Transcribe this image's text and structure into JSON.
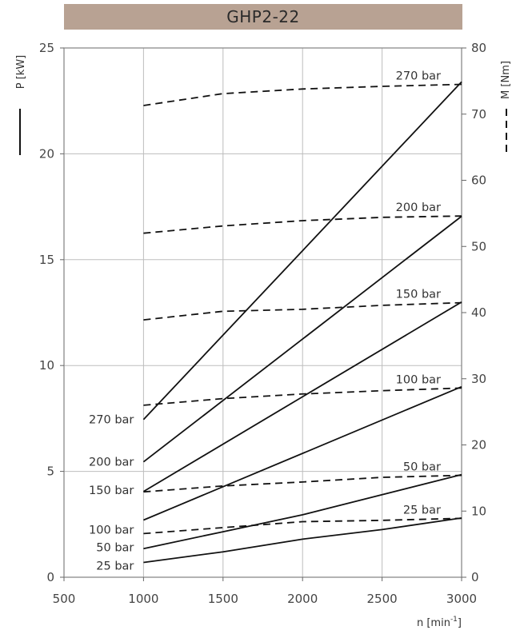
{
  "chart_data": {
    "type": "line",
    "title": "GHP2-22",
    "xlabel": "n [min-1]",
    "xlabel_parts": {
      "base": "n [min",
      "sup": "-1",
      "close": "]"
    },
    "ylabel_left": "P [kW]",
    "ylabel_right": "M [Nm]",
    "xlim": [
      500,
      3000
    ],
    "ylim_left": [
      0,
      25
    ],
    "ylim_right": [
      0,
      80
    ],
    "xticks": [
      500,
      1000,
      1500,
      2000,
      2500,
      3000
    ],
    "yticks_left": [
      0,
      5,
      10,
      15,
      20,
      25
    ],
    "yticks_right": [
      0,
      10,
      20,
      30,
      40,
      50,
      60,
      70,
      80
    ],
    "grid": true,
    "power_series": [
      {
        "name": "270 bar",
        "x": [
          1000,
          3000
        ],
        "y": [
          7.45,
          23.4
        ]
      },
      {
        "name": "200 bar",
        "x": [
          1000,
          3000
        ],
        "y": [
          5.45,
          17.05
        ]
      },
      {
        "name": "150 bar",
        "x": [
          1000,
          3000
        ],
        "y": [
          4.05,
          13.0
        ]
      },
      {
        "name": "100 bar",
        "x": [
          1000,
          3000
        ],
        "y": [
          2.7,
          9.0
        ]
      },
      {
        "name": "50 bar",
        "x": [
          1000,
          1500,
          2000,
          2500,
          3000
        ],
        "y": [
          1.35,
          2.15,
          2.95,
          3.9,
          4.85
        ]
      },
      {
        "name": "25 bar",
        "x": [
          1000,
          1500,
          2000,
          2500,
          3000
        ],
        "y": [
          0.7,
          1.2,
          1.8,
          2.25,
          2.8
        ]
      }
    ],
    "torque_series": [
      {
        "name": "270 bar",
        "x": [
          1000,
          1500,
          2000,
          2500,
          3000
        ],
        "y": [
          71.3,
          73.1,
          73.8,
          74.2,
          74.5
        ]
      },
      {
        "name": "200 bar",
        "x": [
          1000,
          1500,
          2000,
          2500,
          3000
        ],
        "y": [
          52.0,
          53.1,
          53.9,
          54.4,
          54.6
        ]
      },
      {
        "name": "150 bar",
        "x": [
          1000,
          1500,
          2000,
          2500,
          3000
        ],
        "y": [
          38.9,
          40.2,
          40.5,
          41.1,
          41.5
        ]
      },
      {
        "name": "100 bar",
        "x": [
          1000,
          1500,
          2000,
          2500,
          3000
        ],
        "y": [
          26.0,
          27.0,
          27.7,
          28.2,
          28.6
        ]
      },
      {
        "name": "50 bar",
        "x": [
          1000,
          1500,
          2000,
          2500,
          3000
        ],
        "y": [
          12.9,
          13.8,
          14.4,
          15.1,
          15.4
        ]
      },
      {
        "name": "25 bar",
        "x": [
          1000,
          1500,
          2000,
          2500,
          3000
        ],
        "y": [
          6.6,
          7.5,
          8.4,
          8.6,
          8.9
        ]
      }
    ]
  }
}
